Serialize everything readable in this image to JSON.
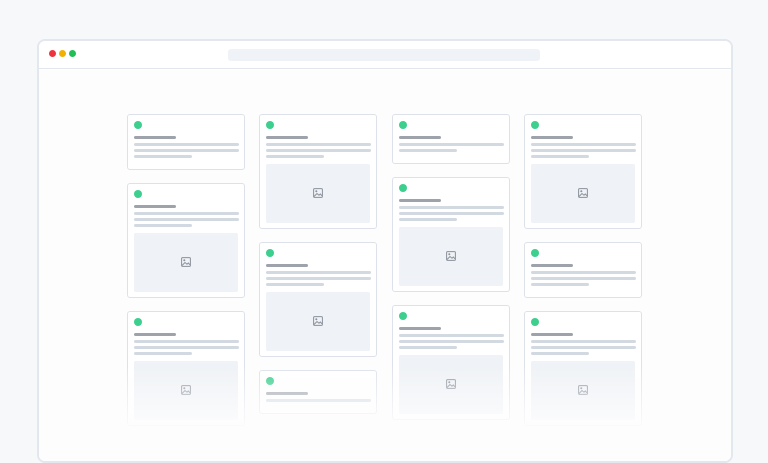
{
  "window": {
    "traffic_lights": [
      "#f0323c",
      "#f2b000",
      "#1fbf55"
    ],
    "url_bar": ""
  },
  "colors": {
    "status": "#3ccf8e",
    "card_border": "#dde2ea",
    "title_line": "#9ea3ab",
    "text_line": "#d3d9e1",
    "image_bg": "#eff2f6"
  },
  "masonry": {
    "columns": [
      [
        {
          "lines": 3,
          "image": false
        },
        {
          "lines": 3,
          "image": true
        },
        {
          "lines": 3,
          "image": true
        }
      ],
      [
        {
          "lines": 3,
          "image": true
        },
        {
          "lines": 3,
          "image": true
        },
        {
          "lines": 1,
          "image": false
        }
      ],
      [
        {
          "lines": 2,
          "image": false
        },
        {
          "lines": 3,
          "image": true
        },
        {
          "lines": 3,
          "image": true
        }
      ],
      [
        {
          "lines": 3,
          "image": true
        },
        {
          "lines": 3,
          "image": false
        },
        {
          "lines": 3,
          "image": true
        }
      ]
    ]
  }
}
